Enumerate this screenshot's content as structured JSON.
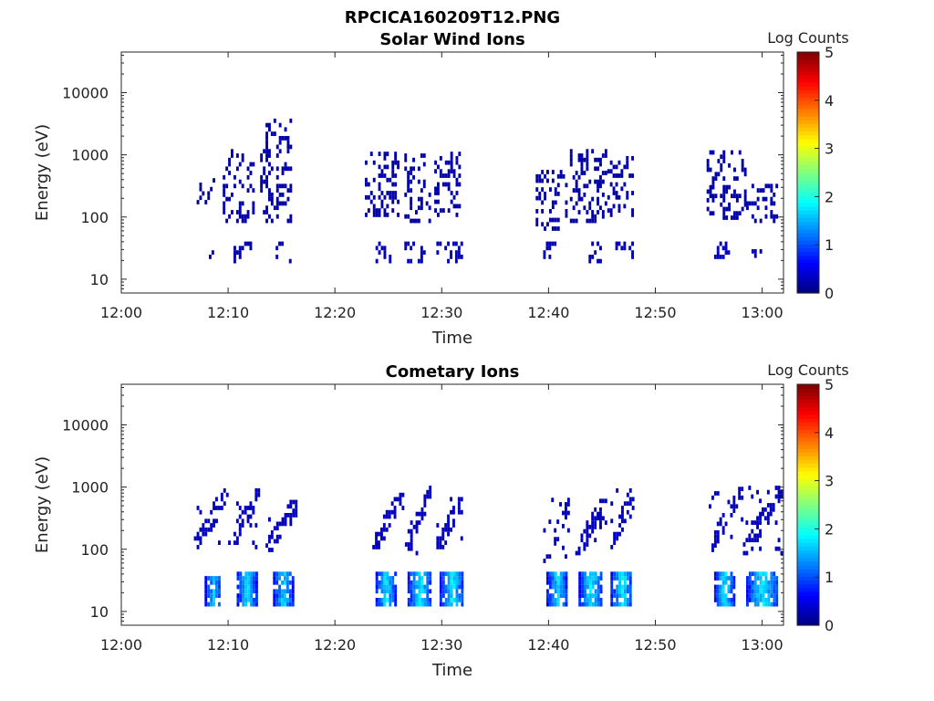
{
  "figure_title": "RPCICA160209T12.PNG",
  "chart_data": [
    {
      "type": "heatmap",
      "title": "Solar Wind Ions",
      "xlabel": "Time",
      "ylabel": "Energy (eV)",
      "x_ticks": [
        "12:00",
        "12:10",
        "12:20",
        "12:30",
        "12:40",
        "12:50",
        "13:00"
      ],
      "x_range_minutes": [
        0,
        62
      ],
      "y_scale": "log",
      "y_ticks": [
        "10",
        "100",
        "1000",
        "10000"
      ],
      "ylim": [
        6,
        45000
      ],
      "colorbar": {
        "label": "Log Counts",
        "ticks": [
          "0",
          "1",
          "2",
          "3",
          "4",
          "5"
        ],
        "range": [
          0,
          5
        ],
        "colormap": "jet"
      },
      "features": [
        {
          "t_start": 6.8,
          "t_end": 8.8,
          "e_low": 160,
          "e_high": 400,
          "log_counts": 0.1
        },
        {
          "t_start": 8.2,
          "t_end": 8.9,
          "e_low": 18,
          "e_high": 28,
          "log_counts": 0.2
        },
        {
          "t_start": 9.5,
          "t_end": 12.5,
          "e_low": 80,
          "e_high": 1100,
          "log_counts": 0.2
        },
        {
          "t_start": 10.5,
          "t_end": 12.5,
          "e_low": 18,
          "e_high": 38,
          "log_counts": 0.2
        },
        {
          "t_start": 13.0,
          "t_end": 15.8,
          "e_low": 80,
          "e_high": 3300,
          "log_counts": 0.2
        },
        {
          "t_start": 14.2,
          "t_end": 15.8,
          "e_low": 18,
          "e_high": 35,
          "log_counts": 0.3
        },
        {
          "t_start": 22.8,
          "t_end": 26.0,
          "e_low": 100,
          "e_high": 1000,
          "log_counts": 0.2
        },
        {
          "t_start": 23.8,
          "t_end": 25.2,
          "e_low": 18,
          "e_high": 35,
          "log_counts": 0.3
        },
        {
          "t_start": 26.5,
          "t_end": 29.0,
          "e_low": 80,
          "e_high": 900,
          "log_counts": 0.2
        },
        {
          "t_start": 26.5,
          "t_end": 28.5,
          "e_low": 18,
          "e_high": 40,
          "log_counts": 0.3
        },
        {
          "t_start": 29.3,
          "t_end": 31.8,
          "e_low": 100,
          "e_high": 1000,
          "log_counts": 0.2
        },
        {
          "t_start": 29.5,
          "t_end": 31.8,
          "e_low": 18,
          "e_high": 38,
          "log_counts": 0.3
        },
        {
          "t_start": 38.8,
          "t_end": 41.8,
          "e_low": 60,
          "e_high": 550,
          "log_counts": 0.2
        },
        {
          "t_start": 39.5,
          "t_end": 41.5,
          "e_low": 18,
          "e_high": 40,
          "log_counts": 0.3
        },
        {
          "t_start": 42.0,
          "t_end": 45.5,
          "e_low": 80,
          "e_high": 1150,
          "log_counts": 0.2
        },
        {
          "t_start": 43.5,
          "t_end": 45.0,
          "e_low": 18,
          "e_high": 35,
          "log_counts": 0.3
        },
        {
          "t_start": 45.5,
          "t_end": 48.0,
          "e_low": 100,
          "e_high": 900,
          "log_counts": 0.2
        },
        {
          "t_start": 46.0,
          "t_end": 47.8,
          "e_low": 18,
          "e_high": 38,
          "log_counts": 0.3
        },
        {
          "t_start": 54.8,
          "t_end": 58.5,
          "e_low": 90,
          "e_high": 1100,
          "log_counts": 0.2
        },
        {
          "t_start": 55.5,
          "t_end": 57.0,
          "e_low": 18,
          "e_high": 35,
          "log_counts": 0.3
        },
        {
          "t_start": 58.5,
          "t_end": 61.5,
          "e_low": 80,
          "e_high": 300,
          "log_counts": 0.2
        },
        {
          "t_start": 59.0,
          "t_end": 60.7,
          "e_low": 22,
          "e_high": 35,
          "log_counts": 0.3
        }
      ]
    },
    {
      "type": "heatmap",
      "title": "Cometary Ions",
      "xlabel": "Time",
      "ylabel": "Energy (eV)",
      "x_ticks": [
        "12:00",
        "12:10",
        "12:20",
        "12:30",
        "12:40",
        "12:50",
        "13:00"
      ],
      "x_range_minutes": [
        0,
        62
      ],
      "y_scale": "log",
      "y_ticks": [
        "10",
        "100",
        "1000",
        "10000"
      ],
      "ylim": [
        6,
        45000
      ],
      "colorbar": {
        "label": "Log Counts",
        "ticks": [
          "0",
          "1",
          "2",
          "3",
          "4",
          "5"
        ],
        "range": [
          0,
          5
        ],
        "colormap": "jet"
      },
      "features": [
        {
          "t_start": 6.8,
          "t_end": 10.0,
          "e_low": 100,
          "e_high": 900,
          "log_counts": 0.3,
          "shape": "rising"
        },
        {
          "t_start": 7.8,
          "t_end": 9.3,
          "e_low": 12,
          "e_high": 35,
          "log_counts": 1.6,
          "shape": "blob"
        },
        {
          "t_start": 10.0,
          "t_end": 13.0,
          "e_low": 100,
          "e_high": 950,
          "log_counts": 0.3,
          "shape": "rising"
        },
        {
          "t_start": 10.8,
          "t_end": 12.6,
          "e_low": 12,
          "e_high": 38,
          "log_counts": 1.7,
          "shape": "blob"
        },
        {
          "t_start": 13.5,
          "t_end": 16.3,
          "e_low": 90,
          "e_high": 600,
          "log_counts": 0.3,
          "shape": "rising"
        },
        {
          "t_start": 14.2,
          "t_end": 16.0,
          "e_low": 12,
          "e_high": 38,
          "log_counts": 1.7,
          "shape": "blob"
        },
        {
          "t_start": 23.5,
          "t_end": 26.3,
          "e_low": 100,
          "e_high": 750,
          "log_counts": 0.3,
          "shape": "rising"
        },
        {
          "t_start": 23.8,
          "t_end": 25.6,
          "e_low": 12,
          "e_high": 40,
          "log_counts": 1.8,
          "shape": "blob"
        },
        {
          "t_start": 26.3,
          "t_end": 29.0,
          "e_low": 80,
          "e_high": 950,
          "log_counts": 0.3,
          "shape": "rising"
        },
        {
          "t_start": 26.8,
          "t_end": 29.0,
          "e_low": 12,
          "e_high": 40,
          "log_counts": 1.8,
          "shape": "blob"
        },
        {
          "t_start": 29.5,
          "t_end": 32.0,
          "e_low": 100,
          "e_high": 600,
          "log_counts": 0.3,
          "shape": "rising"
        },
        {
          "t_start": 29.8,
          "t_end": 32.0,
          "e_low": 12,
          "e_high": 38,
          "log_counts": 1.8,
          "shape": "blob"
        },
        {
          "t_start": 39.5,
          "t_end": 42.0,
          "e_low": 60,
          "e_high": 600,
          "log_counts": 0.3,
          "shape": "rising"
        },
        {
          "t_start": 39.8,
          "t_end": 41.7,
          "e_low": 12,
          "e_high": 40,
          "log_counts": 1.7,
          "shape": "blob"
        },
        {
          "t_start": 42.5,
          "t_end": 45.3,
          "e_low": 80,
          "e_high": 600,
          "log_counts": 0.3,
          "shape": "rising"
        },
        {
          "t_start": 42.8,
          "t_end": 45.0,
          "e_low": 12,
          "e_high": 38,
          "log_counts": 1.8,
          "shape": "blob"
        },
        {
          "t_start": 45.8,
          "t_end": 48.0,
          "e_low": 100,
          "e_high": 1000,
          "log_counts": 0.3,
          "shape": "rising"
        },
        {
          "t_start": 45.8,
          "t_end": 47.8,
          "e_low": 12,
          "e_high": 38,
          "log_counts": 1.8,
          "shape": "blob"
        },
        {
          "t_start": 55.0,
          "t_end": 58.2,
          "e_low": 90,
          "e_high": 1000,
          "log_counts": 0.3,
          "shape": "rising"
        },
        {
          "t_start": 55.5,
          "t_end": 57.3,
          "e_low": 12,
          "e_high": 40,
          "log_counts": 1.8,
          "shape": "blob"
        },
        {
          "t_start": 58.2,
          "t_end": 61.8,
          "e_low": 80,
          "e_high": 1000,
          "log_counts": 0.3,
          "shape": "rising"
        },
        {
          "t_start": 58.5,
          "t_end": 61.5,
          "e_low": 12,
          "e_high": 38,
          "log_counts": 1.8,
          "shape": "blob"
        }
      ]
    }
  ]
}
